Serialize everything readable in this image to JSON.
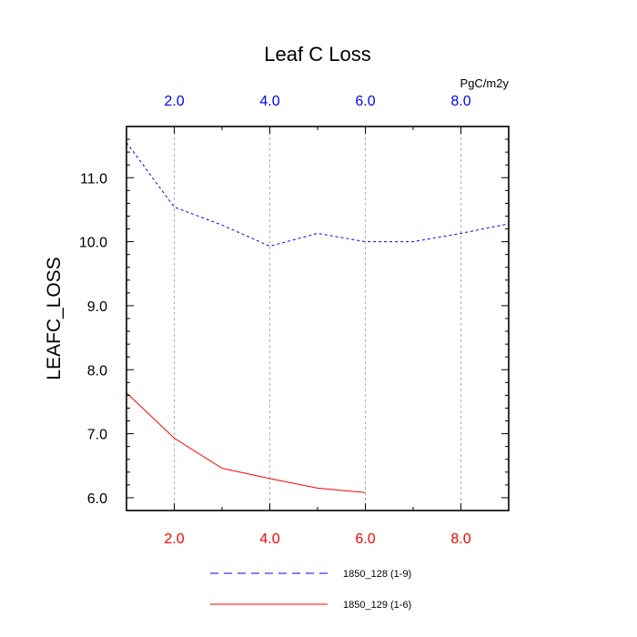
{
  "chart_data": {
    "type": "line",
    "title": "Leaf C Loss",
    "ylabel": "LEAFC_LOSS",
    "units": "PgC/m2y",
    "xlim": [
      1,
      9
    ],
    "ylim": [
      5.8,
      11.8
    ],
    "grid": "vertical dashed at major x ticks",
    "x_ticks": [
      2,
      4,
      6,
      8
    ],
    "x_tick_labels": [
      "2.0",
      "4.0",
      "6.0",
      "8.0"
    ],
    "y_ticks": [
      6,
      7,
      8,
      9,
      10,
      11
    ],
    "y_tick_labels": [
      "6.0",
      "7.0",
      "8.0",
      "9.0",
      "10.0",
      "11.0"
    ],
    "series": [
      {
        "name": "1850_128 (1-9)",
        "color": "#0000ff",
        "style": "dashed",
        "axis": "top",
        "x": [
          1,
          2,
          3,
          4,
          5,
          6,
          7,
          8,
          9
        ],
        "values": [
          11.55,
          10.54,
          10.26,
          9.93,
          10.13,
          10.0,
          10.0,
          10.13,
          10.28
        ]
      },
      {
        "name": "1850_129 (1-6)",
        "color": "#ff0000",
        "style": "solid",
        "axis": "bottom",
        "x": [
          1,
          2,
          3,
          4,
          5,
          6
        ],
        "values": [
          7.64,
          6.93,
          6.46,
          6.3,
          6.15,
          6.08
        ]
      }
    ],
    "legend_position": "bottom-center"
  }
}
